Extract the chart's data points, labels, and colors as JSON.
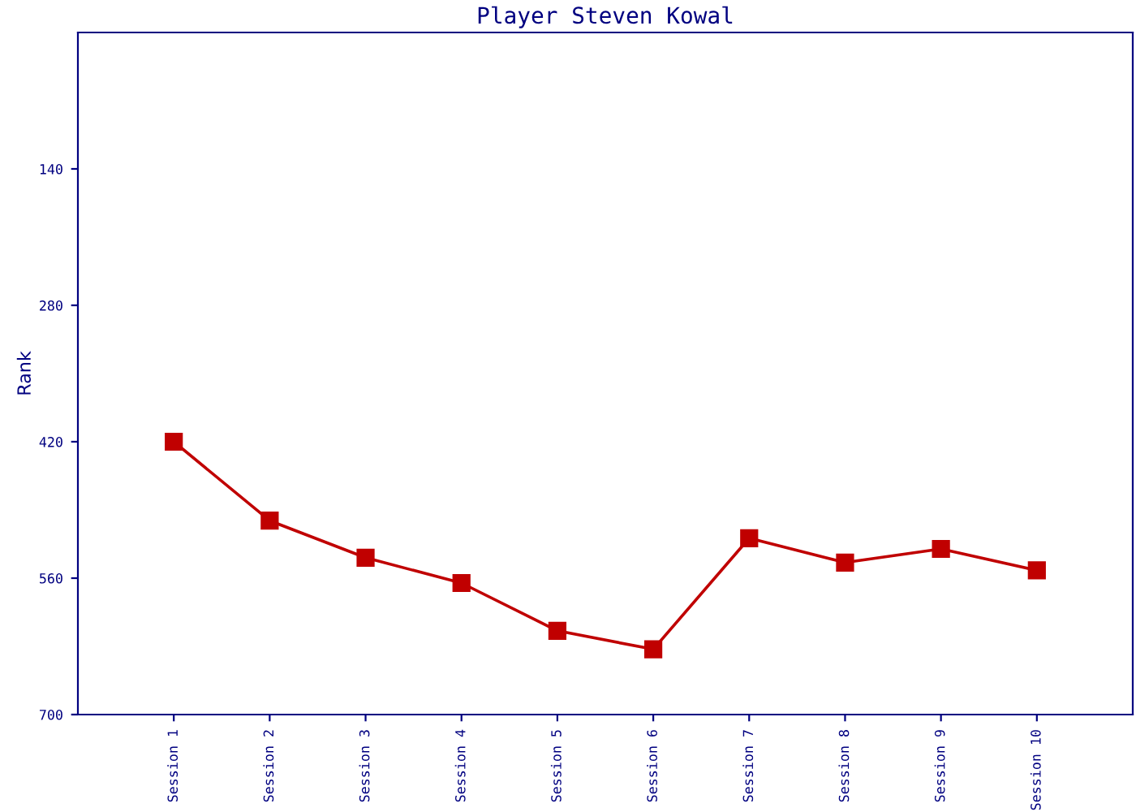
{
  "chart_data": {
    "type": "line",
    "title": "Player Steven Kowal",
    "ylabel": "Rank",
    "categories": [
      "Session 1",
      "Session 2",
      "Session 3",
      "Session 4",
      "Session 5",
      "Session 6",
      "Session 7",
      "Session 8",
      "Session 9",
      "Session 10"
    ],
    "series": [
      {
        "color": "#c00000",
        "values": [
          420,
          501,
          539,
          565,
          614,
          633,
          519,
          544,
          530,
          552
        ]
      }
    ],
    "ylim": [
      700,
      0
    ],
    "yticks": [
      140,
      280,
      420,
      560,
      700
    ],
    "grid": false,
    "legend": false,
    "marker": "square",
    "line_style": "solid"
  }
}
